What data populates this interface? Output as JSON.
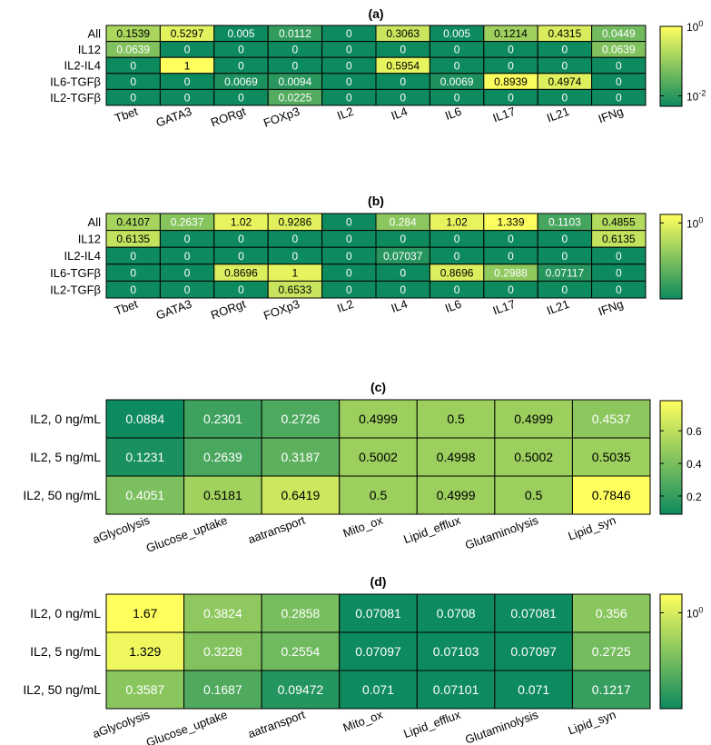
{
  "chart_data": [
    {
      "type": "heatmap",
      "title": "(a)",
      "rows": [
        "All",
        "IL12",
        "IL2-IL4",
        "IL6-TGFβ",
        "IL2-TGFβ"
      ],
      "columns": [
        "Tbet",
        "GATA3",
        "RORgt",
        "FOXp3",
        "IL2",
        "IL4",
        "IL6",
        "IL17",
        "IL21",
        "IFNg"
      ],
      "values": [
        [
          0.1539,
          0.5297,
          0.005,
          0.0112,
          0,
          0.3063,
          0.005,
          0.1214,
          0.4315,
          0.0449
        ],
        [
          0.0639,
          0,
          0,
          0,
          0,
          0,
          0,
          0,
          0,
          0.0639
        ],
        [
          0,
          1,
          0,
          0,
          0,
          0.5954,
          0,
          0,
          0,
          0
        ],
        [
          0,
          0,
          0.0069,
          0.0094,
          0,
          0,
          0.0069,
          0.8939,
          0.4974,
          0
        ],
        [
          0,
          0,
          0,
          0.0225,
          0,
          0,
          0,
          0,
          0,
          0
        ]
      ],
      "labels": [
        [
          "0.1539",
          "0.5297",
          "0.005",
          "0.0112",
          "0",
          "0.3063",
          "0.005",
          "0.1214",
          "0.4315",
          "0.0449"
        ],
        [
          "0.0639",
          "0",
          "0",
          "0",
          "0",
          "0",
          "0",
          "0",
          "0",
          "0.0639"
        ],
        [
          "0",
          "1",
          "0",
          "0",
          "0",
          "0.5954",
          "0",
          "0",
          "0",
          "0"
        ],
        [
          "0",
          "0",
          "0.0069",
          "0.0094",
          "0",
          "0",
          "0.0069",
          "0.8939",
          "0.4974",
          "0"
        ],
        [
          "0",
          "0",
          "0",
          "0.0225",
          "0",
          "0",
          "0",
          "0",
          "0",
          "0"
        ]
      ],
      "color_scale": "log",
      "clim": [
        0.005,
        1
      ],
      "colorbar_ticks": [
        {
          "base": "10",
          "exp": "0",
          "value": 1
        },
        {
          "base": "10",
          "exp": "-2",
          "value": 0.01
        }
      ]
    },
    {
      "type": "heatmap",
      "title": "(b)",
      "rows": [
        "All",
        "IL12",
        "IL2-IL4",
        "IL6-TGFβ",
        "IL2-TGFβ"
      ],
      "columns": [
        "Tbet",
        "GATA3",
        "RORgt",
        "FOXp3",
        "IL2",
        "IL4",
        "IL6",
        "IL17",
        "IL21",
        "IFNg"
      ],
      "values": [
        [
          0.4107,
          0.2637,
          1.02,
          0.9286,
          0,
          0.284,
          1.02,
          1.339,
          0.1103,
          0.4855
        ],
        [
          0.6135,
          0,
          0,
          0,
          0,
          0,
          0,
          0,
          0,
          0.6135
        ],
        [
          0,
          0,
          0,
          0,
          0,
          0.07037,
          0,
          0,
          0,
          0
        ],
        [
          0,
          0,
          0.8696,
          1,
          0,
          0,
          0.8696,
          0.2988,
          0.07117,
          0
        ],
        [
          0,
          0,
          0,
          0.6533,
          0,
          0,
          0,
          0,
          0,
          0
        ]
      ],
      "labels": [
        [
          "0.4107",
          "0.2637",
          "1.02",
          "0.9286",
          "0",
          "0.284",
          "1.02",
          "1.339",
          "0.1103",
          "0.4855"
        ],
        [
          "0.6135",
          "0",
          "0",
          "0",
          "0",
          "0",
          "0",
          "0",
          "0",
          "0.6135"
        ],
        [
          "0",
          "0",
          "0",
          "0",
          "0",
          "0.07037",
          "0",
          "0",
          "0",
          "0"
        ],
        [
          "0",
          "0",
          "0.8696",
          "1",
          "0",
          "0",
          "0.8696",
          "0.2988",
          "0.07117",
          "0"
        ],
        [
          "0",
          "0",
          "0",
          "0.6533",
          "0",
          "0",
          "0",
          "0",
          "0",
          "0"
        ]
      ],
      "color_scale": "log",
      "clim": [
        0.05,
        1.4
      ],
      "colorbar_ticks": [
        {
          "base": "10",
          "exp": "0",
          "value": 1
        }
      ]
    },
    {
      "type": "heatmap",
      "title": "(c)",
      "rows": [
        "IL2, 0 ng/mL",
        "IL2, 5 ng/mL",
        "IL2, 50 ng/mL"
      ],
      "columns": [
        "aGlycolysis",
        "Glucose_uptake",
        "aatransport",
        "Mito_ox",
        "Lipid_efflux",
        "Glutaminolysis",
        "Lipid_syn"
      ],
      "values": [
        [
          0.0884,
          0.2301,
          0.2726,
          0.4999,
          0.5,
          0.4999,
          0.4537
        ],
        [
          0.1231,
          0.2639,
          0.3187,
          0.5002,
          0.4998,
          0.5002,
          0.5035
        ],
        [
          0.4051,
          0.5181,
          0.6419,
          0.5,
          0.4999,
          0.5,
          0.7846
        ]
      ],
      "labels": [
        [
          "0.0884",
          "0.2301",
          "0.2726",
          "0.4999",
          "0.5",
          "0.4999",
          "0.4537"
        ],
        [
          "0.1231",
          "0.2639",
          "0.3187",
          "0.5002",
          "0.4998",
          "0.5002",
          "0.5035"
        ],
        [
          "0.4051",
          "0.5181",
          "0.6419",
          "0.5",
          "0.4999",
          "0.5",
          "0.7846"
        ]
      ],
      "color_scale": "linear",
      "clim": [
        0.0884,
        0.7846
      ],
      "colorbar_ticks": [
        {
          "label": "0.6",
          "value": 0.6
        },
        {
          "label": "0.4",
          "value": 0.4
        },
        {
          "label": "0.2",
          "value": 0.2
        }
      ]
    },
    {
      "type": "heatmap",
      "title": "(d)",
      "rows": [
        "IL2, 0 ng/mL",
        "IL2, 5 ng/mL",
        "IL2, 50 ng/mL"
      ],
      "columns": [
        "aGlycolysis",
        "Glucose_uptake",
        "aatransport",
        "Mito_ox",
        "Lipid_efflux",
        "Glutaminolysis",
        "Lipid_syn"
      ],
      "values": [
        [
          1.67,
          0.3824,
          0.2858,
          0.07081,
          0.0708,
          0.07081,
          0.356
        ],
        [
          1.329,
          0.3228,
          0.2554,
          0.07097,
          0.07103,
          0.07097,
          0.2725
        ],
        [
          0.3587,
          0.1687,
          0.09472,
          0.071,
          0.07101,
          0.071,
          0.1217
        ]
      ],
      "labels": [
        [
          "1.67",
          "0.3824",
          "0.2858",
          "0.07081",
          "0.0708",
          "0.07081",
          "0.356"
        ],
        [
          "1.329",
          "0.3228",
          "0.2554",
          "0.07097",
          "0.07103",
          "0.07097",
          "0.2725"
        ],
        [
          "0.3587",
          "0.1687",
          "0.09472",
          "0.071",
          "0.07101",
          "0.071",
          "0.1217"
        ]
      ],
      "color_scale": "log",
      "clim": [
        0.0708,
        1.67
      ],
      "colorbar_ticks": [
        {
          "base": "10",
          "exp": "0",
          "value": 1
        }
      ]
    }
  ],
  "colors": {
    "low": "#0d8a5e",
    "high": "#ffff5e",
    "grid": "#000000",
    "label_light": "#ffffff",
    "label_dark": "#000000"
  }
}
